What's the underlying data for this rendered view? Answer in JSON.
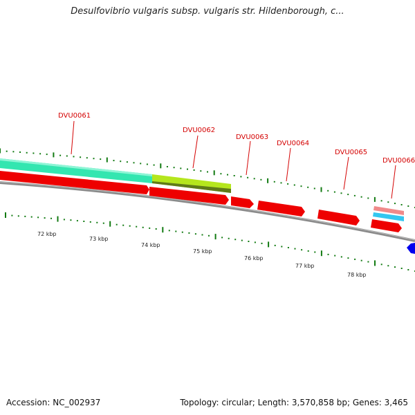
{
  "title": "Desulfovibrio vulgaris subsp. vulgaris str. Hildenborough, c...",
  "footer": {
    "accession": "Accession: NC_002937",
    "summary": "Topology: circular; Length: 3,570,858 bp; Genes: 3,465"
  },
  "colors": {
    "cds": "#ee0000",
    "feature_teal": "#33e6b0",
    "feature_lime": "#b5e61d",
    "feature_blue": "#0000ee",
    "feature_pink": "#f08a8a",
    "feature_cyan": "#33c7f0",
    "backbone": "#8a8a8a",
    "ticks": "#117a11"
  },
  "scale": {
    "unit": "kbp",
    "labels": [
      "72 kbp",
      "73 kbp",
      "74 kbp",
      "75 kbp",
      "76 kbp",
      "77 kbp",
      "78 kbp"
    ]
  },
  "genes": [
    {
      "id": "DVU0061"
    },
    {
      "id": "DVU0062"
    },
    {
      "id": "DVU0063"
    },
    {
      "id": "DVU0064"
    },
    {
      "id": "DVU0065"
    },
    {
      "id": "DVU0066"
    }
  ]
}
